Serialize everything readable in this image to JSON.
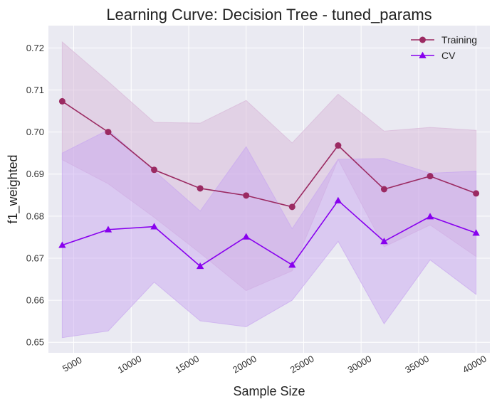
{
  "chart_data": {
    "type": "line",
    "title": "Learning Curve: Decision Tree - tuned_params",
    "xlabel": "Sample Size",
    "ylabel": "f1_weighted",
    "xlim": [
      2800,
      41200
    ],
    "ylim": [
      0.6475,
      0.7253
    ],
    "xticks": [
      5000,
      10000,
      15000,
      20000,
      25000,
      30000,
      35000,
      40000
    ],
    "yticks": [
      0.65,
      0.66,
      0.67,
      0.68,
      0.69,
      0.7,
      0.71,
      0.72
    ],
    "ytick_labels": [
      "0.65",
      "0.66",
      "0.67",
      "0.68",
      "0.69",
      "0.70",
      "0.71",
      "0.72"
    ],
    "grid": true,
    "legend_position": "top-right",
    "x": [
      4000,
      8000,
      12000,
      16000,
      20000,
      24000,
      28000,
      32000,
      36000,
      40000
    ],
    "series": [
      {
        "name": "Training",
        "color": "#9b2a62",
        "band_color": "#d8b8d8",
        "marker": "circle",
        "values": [
          0.7073,
          0.7,
          0.691,
          0.6866,
          0.6849,
          0.6822,
          0.6968,
          0.6864,
          0.6895,
          0.6854
        ],
        "upper": [
          0.7214,
          0.712,
          0.7023,
          0.7021,
          0.7075,
          0.6974,
          0.709,
          0.7002,
          0.7011,
          0.7004
        ],
        "lower": [
          0.6934,
          0.6877,
          0.6797,
          0.6712,
          0.6623,
          0.667,
          0.6935,
          0.6727,
          0.6779,
          0.6704
        ]
      },
      {
        "name": "CV",
        "color": "#8800ee",
        "band_color": "#c9a8f0",
        "marker": "triangle",
        "values": [
          0.6731,
          0.6768,
          0.6775,
          0.6681,
          0.6751,
          0.6684,
          0.6837,
          0.674,
          0.6799,
          0.676
        ],
        "upper": [
          0.695,
          0.7005,
          0.6908,
          0.6812,
          0.6965,
          0.677,
          0.6935,
          0.6937,
          0.6902,
          0.6907
        ],
        "lower": [
          0.6511,
          0.6527,
          0.6643,
          0.6551,
          0.6537,
          0.66,
          0.674,
          0.6544,
          0.6696,
          0.6614
        ]
      }
    ]
  }
}
